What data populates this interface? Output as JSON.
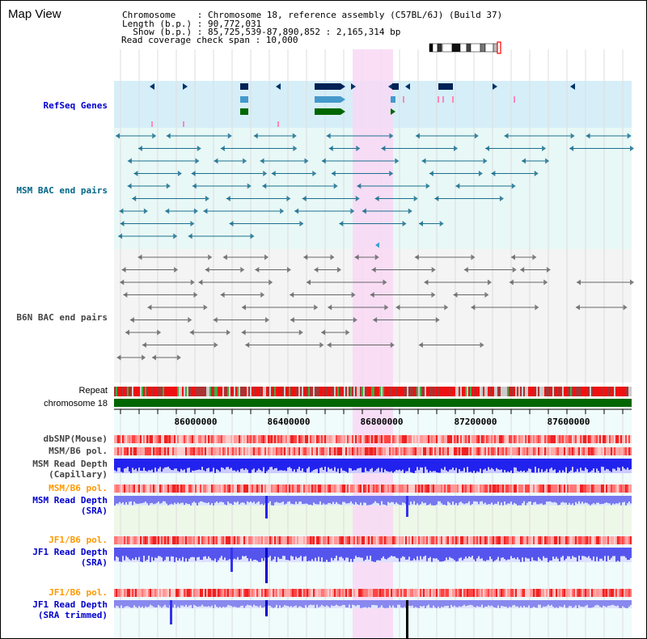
{
  "title": "Map View",
  "info": {
    "line1": "Chromosome    : Chromosome 18, reference assembly (C57BL/6J) (Build 37)",
    "line2": "Length (b.p.) : 90,772,031",
    "line3": "  Show (b.p.) : 85,725,539-87,890,852 : 2,165,314 bp",
    "line4": "Read coverage check span : 10,000"
  },
  "tracks": {
    "refseq": "RefSeq Genes",
    "msm_bac": "MSM BAC end pairs",
    "b6n_bac": "B6N BAC end pairs",
    "repeat": "Repeat",
    "chrom": "chromosome 18",
    "dbsnp": "dbSNP(Mouse)",
    "msm_pol": "MSM/B6 pol.",
    "msm_depth_cap_1": "MSM Read Depth",
    "msm_depth_cap_2": "(Capillary)",
    "msm_pol_sra": "MSM/B6 pol.",
    "msm_depth_sra_1": "MSM Read Depth",
    "msm_depth_sra_2": "(SRA)",
    "jf1_pol": "JF1/B6 pol.",
    "jf1_depth_1": "JF1 Read Depth",
    "jf1_depth_2": "(SRA)",
    "jf1_pol_2": "JF1/B6 pol.",
    "jf1_trim_1": "JF1 Read Depth",
    "jf1_trim_2": "(SRA trimmed)"
  },
  "axis": {
    "ticks": [
      "86000000",
      "86400000",
      "86800000",
      "87200000",
      "87600000"
    ]
  },
  "colors": {
    "refseq_label": "#0000cc",
    "msm_label": "#006688",
    "b6n_label": "#444444",
    "sra_pol_label": "#ff9900",
    "depth_blue": "#0000cc",
    "highlight": "#f8d8f4",
    "chrom_green": "#006600"
  }
}
